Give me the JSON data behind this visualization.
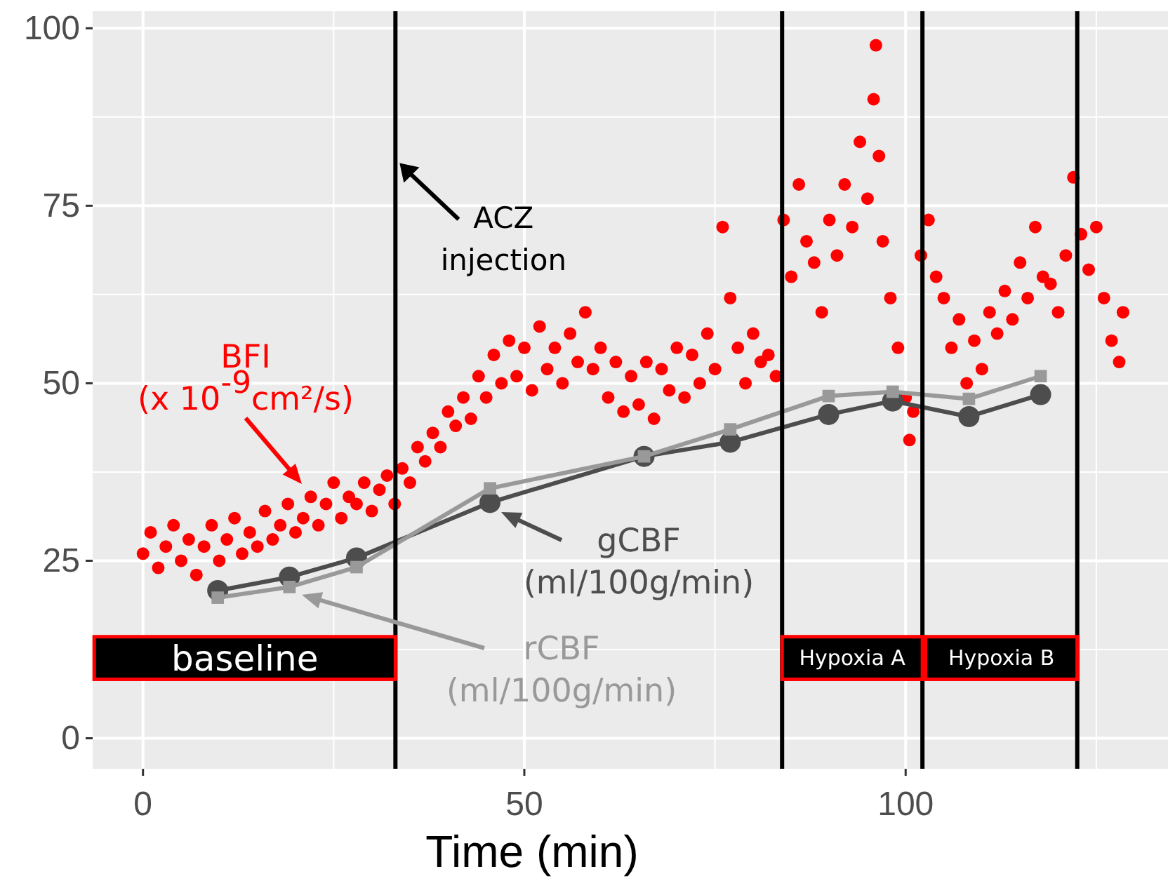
{
  "chart_data": {
    "type": "scatter",
    "xlabel": "Time (min)",
    "xlim": [
      -6.6,
      134.4
    ],
    "ylim": [
      -4.3,
      102.4
    ],
    "xticks": [
      0,
      50,
      100
    ],
    "yticks": [
      0,
      25,
      50,
      75,
      100
    ],
    "grid": true,
    "series": [
      {
        "name": "BFI\n(x 10$^{-9}$cm²/s)",
        "marker": "circle",
        "color": "#ff0000",
        "x": [
          0,
          1,
          2,
          3,
          4,
          5,
          6,
          7,
          8,
          9,
          10,
          11,
          12,
          13,
          14,
          15,
          16,
          17,
          18,
          19,
          20,
          21,
          22,
          23,
          24,
          25,
          26,
          27,
          28,
          29,
          30,
          31,
          32,
          33,
          34,
          35,
          36,
          37,
          38,
          39,
          40,
          41,
          42,
          43,
          44,
          45,
          46,
          47,
          48,
          49,
          50,
          51,
          52,
          53,
          54,
          55,
          56,
          57,
          58,
          59,
          60,
          61,
          62,
          63,
          64,
          65,
          66,
          67,
          68,
          69,
          70,
          71,
          72,
          73,
          74,
          75,
          76,
          77,
          78,
          79,
          80,
          81,
          82,
          83,
          84,
          85,
          86,
          87,
          88,
          89,
          90,
          91,
          92,
          93,
          94,
          95,
          95.8,
          96.1,
          96.5,
          97,
          98,
          99,
          100,
          100.5,
          101,
          102,
          103,
          104,
          105,
          106,
          107,
          108,
          109,
          110,
          111,
          112,
          113,
          114,
          115,
          116,
          117,
          118,
          119,
          120,
          121,
          122,
          123,
          124,
          125,
          126,
          127,
          128,
          128.5
        ],
        "values": [
          26,
          29,
          24,
          27,
          30,
          25,
          28,
          23,
          27,
          30,
          25,
          28,
          31,
          26,
          29,
          27,
          32,
          28,
          30,
          33,
          29,
          31,
          34,
          30,
          33,
          36,
          31,
          34,
          33,
          36,
          32,
          35,
          37,
          33,
          38,
          36,
          41,
          39,
          43,
          41,
          46,
          44,
          48,
          45,
          51,
          48,
          54,
          50,
          56,
          51,
          55,
          49,
          58,
          52,
          55,
          50,
          57,
          53,
          60,
          52,
          55,
          48,
          53,
          46,
          51,
          47,
          53,
          45,
          52,
          49,
          55,
          48,
          54,
          50,
          57,
          52,
          72,
          62,
          55,
          50,
          57,
          53,
          54,
          51,
          73,
          65,
          78,
          70,
          67,
          60,
          73,
          68,
          78,
          72,
          84,
          76,
          90,
          97.6,
          82,
          70,
          62,
          55,
          48,
          42,
          46,
          68,
          73,
          65,
          62,
          55,
          59,
          50,
          56,
          52,
          60,
          57,
          63,
          59,
          67,
          62,
          72,
          65,
          64,
          60,
          68,
          79,
          71,
          66,
          72,
          62,
          56,
          53,
          60
        ]
      },
      {
        "name": "gCBF\n(ml/100g/min)",
        "type": "line",
        "marker": "circle",
        "color": "#4d4d4d",
        "x": [
          9.8,
          19.2,
          28,
          45.5,
          65.7,
          77,
          89.9,
          98.3,
          108.3,
          117.7
        ],
        "values": [
          20.8,
          22.7,
          25.4,
          33.2,
          39.7,
          41.7,
          45.6,
          47.5,
          45.3,
          48.4
        ]
      },
      {
        "name": "rCBF\n(ml/100g/min)",
        "type": "line",
        "marker": "square",
        "color": "#999999",
        "x": [
          9.8,
          19.2,
          28,
          45.5,
          65.7,
          77,
          89.9,
          98.3,
          108.3,
          117.7
        ],
        "values": [
          19.8,
          21.3,
          24.1,
          35.2,
          39.7,
          43.5,
          48.2,
          48.8,
          47.8,
          51
        ]
      }
    ],
    "ref_lines": [
      {
        "axis": "x",
        "value": 33.1,
        "color": "#000000"
      },
      {
        "axis": "x",
        "value": 83.8,
        "color": "#000000"
      },
      {
        "axis": "x",
        "value": 102.2,
        "color": "#000000"
      },
      {
        "axis": "x",
        "value": 122.5,
        "color": "#000000"
      }
    ],
    "bands": [
      {
        "axis": "x",
        "from": -6.4,
        "to": 33.1,
        "label": "baseline",
        "color": "#000000"
      },
      {
        "axis": "x",
        "from": 83.8,
        "to": 102.2,
        "label": "Hypoxia A",
        "color": "#000000"
      },
      {
        "axis": "x",
        "from": 102.6,
        "to": 122.5,
        "label": "Hypoxia B",
        "color": "#000000"
      }
    ],
    "annotations": [
      {
        "text": "ACZ\ninjection",
        "x": 33.1,
        "y": 81
      }
    ]
  }
}
